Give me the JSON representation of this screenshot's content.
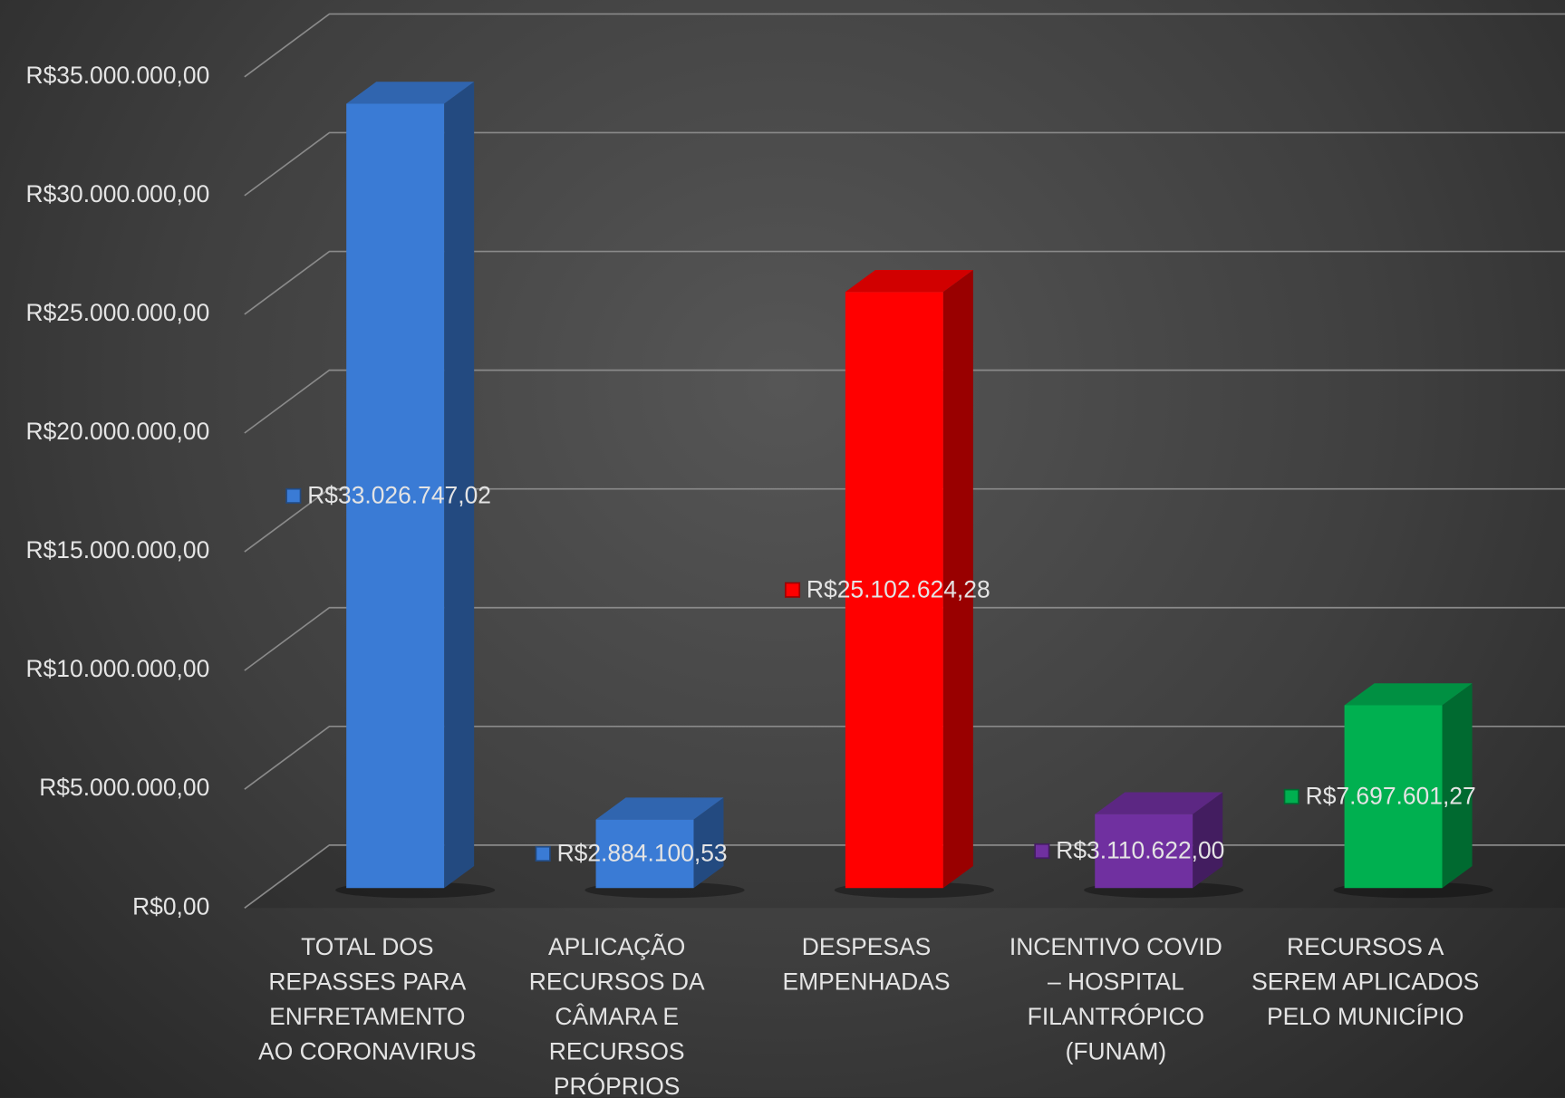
{
  "chart_data": {
    "type": "bar3d",
    "categories": [
      "TOTAL DOS\nREPASSES PARA\nENFRETAMENTO\nAO CORONAVIRUS",
      "APLICAÇÃO\nRECURSOS DA\nCÂMARA E\nRECURSOS\nPRÓPRIOS",
      "DESPESAS\nEMPENHADAS",
      "INCENTIVO COVID\n– HOSPITAL\nFILANTRÓPICO\n(FUNAM)",
      "RECURSOS A\nSEREM APLICADOS\nPELO MUNICÍPIO"
    ],
    "values": [
      33026747.02,
      2884100.53,
      25102624.28,
      3110622.0,
      7697601.27
    ],
    "value_labels": [
      "R$33.026.747,02",
      "R$2.884.100,53",
      "R$25.102.624,28",
      "R$3.110.622,00",
      "R$7.697.601,27"
    ],
    "colors": [
      "#3a7bd5",
      "#3a7bd5",
      "#ff0000",
      "#7030a0",
      "#00b050"
    ],
    "ylim": [
      0,
      35000000
    ],
    "yticks": [
      {
        "value": 0,
        "label": "R$0,00"
      },
      {
        "value": 5000000,
        "label": "R$5.000.000,00"
      },
      {
        "value": 10000000,
        "label": "R$10.000.000,00"
      },
      {
        "value": 15000000,
        "label": "R$15.000.000,00"
      },
      {
        "value": 20000000,
        "label": "R$20.000.000,00"
      },
      {
        "value": 25000000,
        "label": "R$25.000.000,00"
      },
      {
        "value": 30000000,
        "label": "R$30.000.000,00"
      },
      {
        "value": 35000000,
        "label": "R$35.000.000,00"
      }
    ],
    "grid": true
  }
}
